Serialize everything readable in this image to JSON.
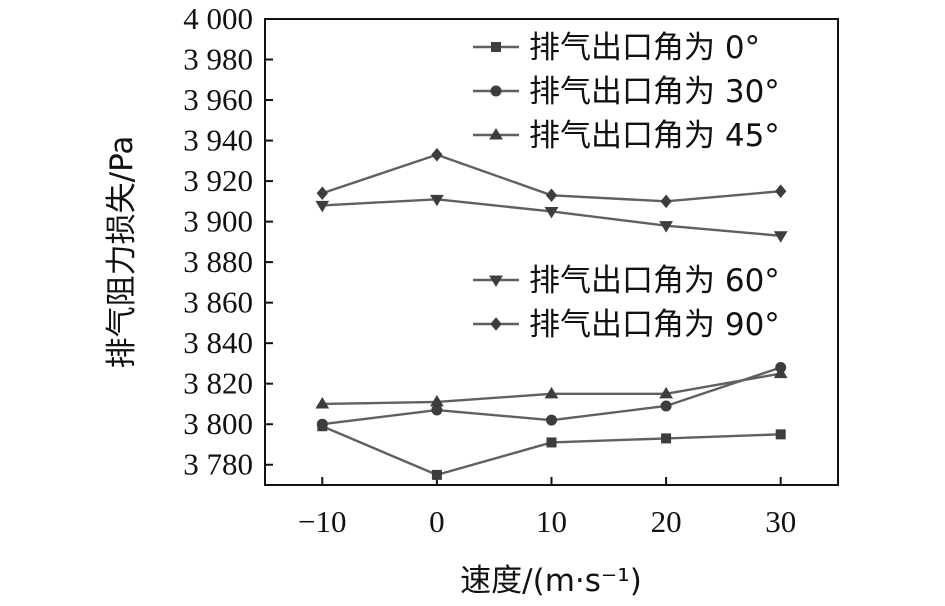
{
  "chart_data": {
    "type": "line",
    "xlabel": "速度/(m·s⁻¹)",
    "ylabel": "排气阻力损失/Pa",
    "x": [
      -10,
      0,
      10,
      20,
      30
    ],
    "x_tick_labels": [
      "−10",
      "0",
      "10",
      "20",
      "30"
    ],
    "xlim": [
      -15,
      35
    ],
    "ylim": [
      3770,
      4000
    ],
    "y_ticks": [
      3780,
      3800,
      3820,
      3840,
      3860,
      3880,
      3900,
      3920,
      3940,
      3960,
      3980,
      4000
    ],
    "y_tick_labels": [
      "3 780",
      "3 800",
      "3 820",
      "3 840",
      "3 860",
      "3 880",
      "3 900",
      "3 920",
      "3 940",
      "3 960",
      "3 980",
      "4 000"
    ],
    "grid": false,
    "series": [
      {
        "name": "排气出口角为 0°",
        "marker": "square",
        "values": [
          3799,
          3775,
          3791,
          3793,
          3795
        ]
      },
      {
        "name": "排气出口角为 30°",
        "marker": "circle",
        "values": [
          3800,
          3807,
          3802,
          3809,
          3828
        ]
      },
      {
        "name": "排气出口角为 45°",
        "marker": "triangle-up",
        "values": [
          3810,
          3811,
          3815,
          3815,
          3825
        ]
      },
      {
        "name": "排气出口角为 60°",
        "marker": "triangle-down",
        "values": [
          3908,
          3911,
          3905,
          3898,
          3893
        ]
      },
      {
        "name": "排气出口角为 90°",
        "marker": "diamond",
        "values": [
          3914,
          3933,
          3913,
          3910,
          3915
        ]
      }
    ],
    "legend_groups": [
      {
        "placement": "top-right",
        "series": [
          0,
          1,
          2
        ]
      },
      {
        "placement": "middle-right",
        "series": [
          3,
          4
        ]
      }
    ],
    "colors": {
      "line": "#606060",
      "marker": "#3d3d3d",
      "axis": "#111111"
    }
  }
}
